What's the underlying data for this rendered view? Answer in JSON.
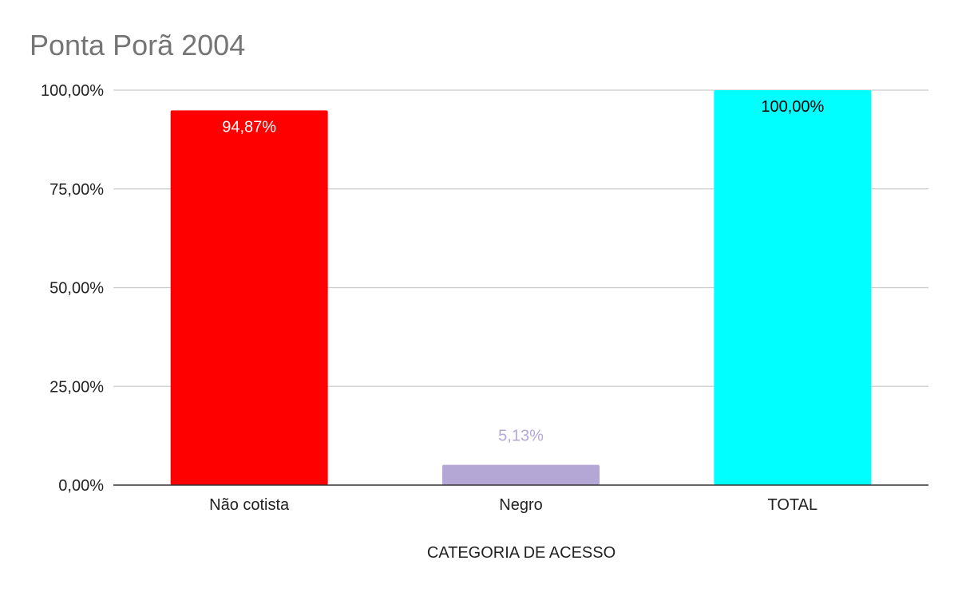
{
  "chart_data": {
    "type": "bar",
    "title": "Ponta Porã 2004",
    "xlabel": "CATEGORIA DE ACESSO",
    "ylabel": "",
    "categories": [
      "Não cotista",
      "Negro",
      "TOTAL"
    ],
    "values": [
      94.87,
      5.13,
      100.0
    ],
    "data_labels": [
      "94,87%",
      "5,13%",
      "100,00%"
    ],
    "colors": [
      "#ff0000",
      "#b4a7d6",
      "#00ffff"
    ],
    "label_colors": [
      "#ffffff",
      "#b4a7d6",
      "#000000"
    ],
    "label_inside": [
      true,
      false,
      true
    ],
    "ylim": [
      0,
      100
    ],
    "yticks": [
      0,
      25,
      50,
      75,
      100
    ],
    "ytick_labels": [
      "0,00%",
      "25,00%",
      "50,00%",
      "75,00%",
      "100,00%"
    ],
    "grid": true,
    "legend": "none"
  }
}
